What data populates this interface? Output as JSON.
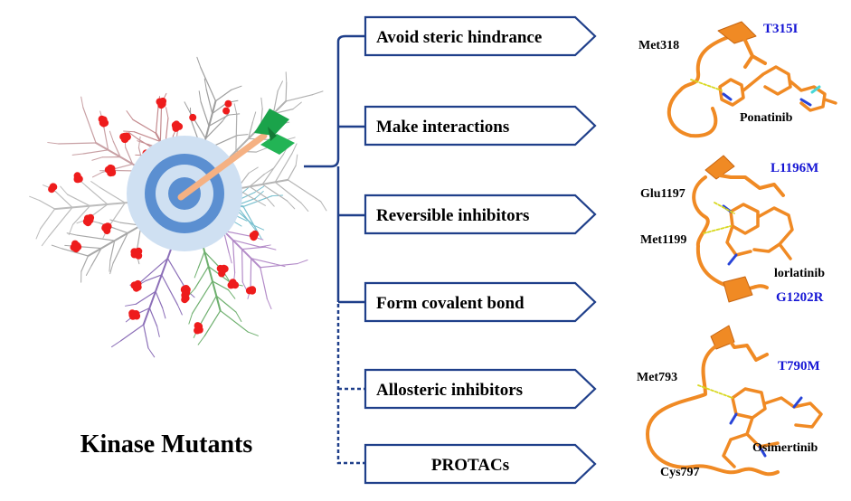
{
  "left_panel": {
    "title": "Kinase Mutants"
  },
  "strategies": [
    {
      "label": "Avoid steric hindrance",
      "link": "solid"
    },
    {
      "label": "Make interactions",
      "link": "solid"
    },
    {
      "label": "Reversible inhibitors",
      "link": "solid"
    },
    {
      "label": "Form covalent bond",
      "link": "solid"
    },
    {
      "label": "Allosteric inhibitors",
      "link": "dotted"
    },
    {
      "label": "PROTACs",
      "link": "dotted"
    }
  ],
  "structures": [
    {
      "drug": "Ponatinib",
      "mutation": "T315I",
      "residues": [
        "Met318"
      ]
    },
    {
      "drug": "lorlatinib",
      "mutation": "L1196M",
      "mutation2": "G1202R",
      "residues": [
        "Glu1197",
        "Met1199"
      ]
    },
    {
      "drug": "Osimertinib",
      "mutation": "T790M",
      "residues": [
        "Met793",
        "Cys797"
      ]
    }
  ],
  "colors": {
    "bracket": "#1f3f8a",
    "arrow_fill": "#ffffff",
    "arrow_stroke": "#1f3f8a",
    "protein": "#f08a24",
    "mutation_text": "#1515d4",
    "mutant_dot": "#ee1c1c",
    "target_outer": "#c9dcf0",
    "target_ring": "#5b8fd1",
    "arrow_shaft": "#f5b183",
    "fletching": "#1aa34a"
  }
}
